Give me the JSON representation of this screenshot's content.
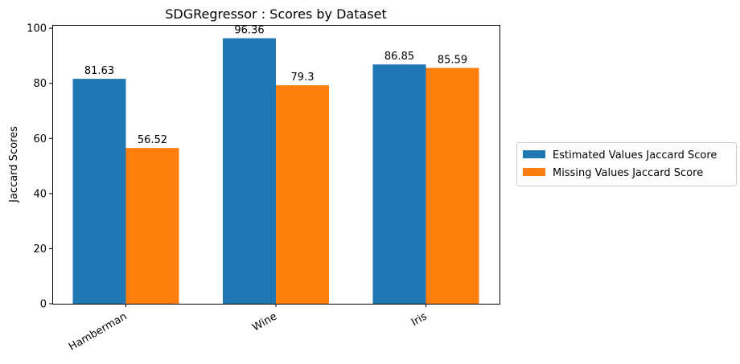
{
  "chart_data": {
    "type": "bar",
    "title": "SDGRegressor : Scores by Dataset",
    "xlabel": "",
    "ylabel": "Jaccard Scores",
    "categories": [
      "Hamberman",
      "Wine",
      "Iris"
    ],
    "series": [
      {
        "name": "Estimated Values Jaccard Score",
        "values": [
          81.63,
          96.36,
          86.85
        ],
        "color": "#1f77b4"
      },
      {
        "name": "Missing Values Jaccard Score",
        "values": [
          56.52,
          79.3,
          85.59
        ],
        "color": "#ff7f0e"
      }
    ],
    "ylim": [
      0,
      101.2
    ],
    "yticks": [
      0,
      20,
      40,
      60,
      80,
      100
    ],
    "grid": false,
    "legend": "outside-right",
    "data_labels": true
  }
}
